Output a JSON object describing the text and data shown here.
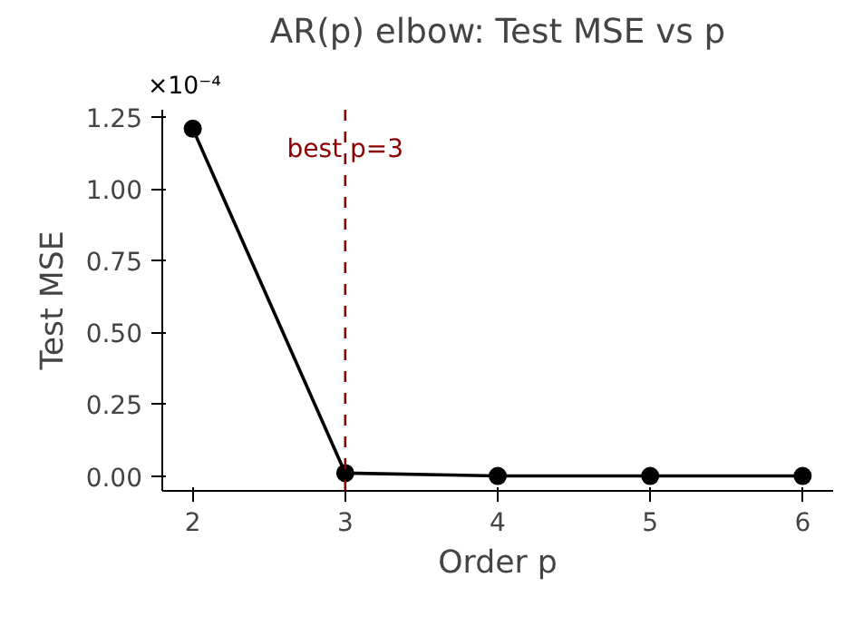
{
  "chart_data": {
    "type": "line",
    "title": "AR(p) elbow: Test MSE vs p",
    "xlabel": "Order p",
    "ylabel": "Test MSE",
    "x": [
      2,
      3,
      4,
      5,
      6
    ],
    "series": [
      {
        "color": "#000000",
        "values": [
          1.21,
          0.01,
          0.0,
          0.0,
          0.0
        ]
      }
    ],
    "marker": "circle",
    "line_style": "solid",
    "xlim": [
      1.8,
      6.2
    ],
    "xticks": [
      2,
      3,
      4,
      5,
      6
    ],
    "ylim": [
      -0.052,
      1.276
    ],
    "yticks": [
      {
        "value": 0,
        "label": "0.00"
      },
      0.25,
      {
        "value": 0.5,
        "label": "0.50"
      },
      0.75,
      {
        "value": 1,
        "label": "1.00"
      },
      1.25
    ],
    "annotations": [
      "×10⁻⁴"
    ],
    "ref_lines": [
      {
        "axis": "x",
        "value": 3,
        "label": "best p=3",
        "color": "#8b0000",
        "line_style": "dashed"
      }
    ],
    "grid": false
  }
}
